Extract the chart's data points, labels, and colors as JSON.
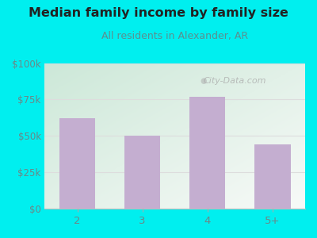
{
  "title": "Median family income by family size",
  "subtitle": "All residents in Alexander, AR",
  "categories": [
    "2",
    "3",
    "4",
    "5+"
  ],
  "values": [
    62000,
    50000,
    77000,
    44000
  ],
  "bar_color": "#c4aed0",
  "outer_bg": "#00efef",
  "title_color": "#222222",
  "subtitle_color": "#5a9090",
  "tick_color": "#6a8888",
  "ylim": [
    0,
    100000
  ],
  "yticks": [
    0,
    25000,
    50000,
    75000,
    100000
  ],
  "ytick_labels": [
    "$0",
    "$25k",
    "$50k",
    "$75k",
    "$100k"
  ],
  "watermark": "City-Data.com",
  "watermark_color": "#aaaaaa",
  "grid_color": "#dddddd",
  "plot_bg_colors": [
    "#cce8d8",
    "#f8faf8"
  ],
  "bottom_spine_color": "#bbbbbb"
}
